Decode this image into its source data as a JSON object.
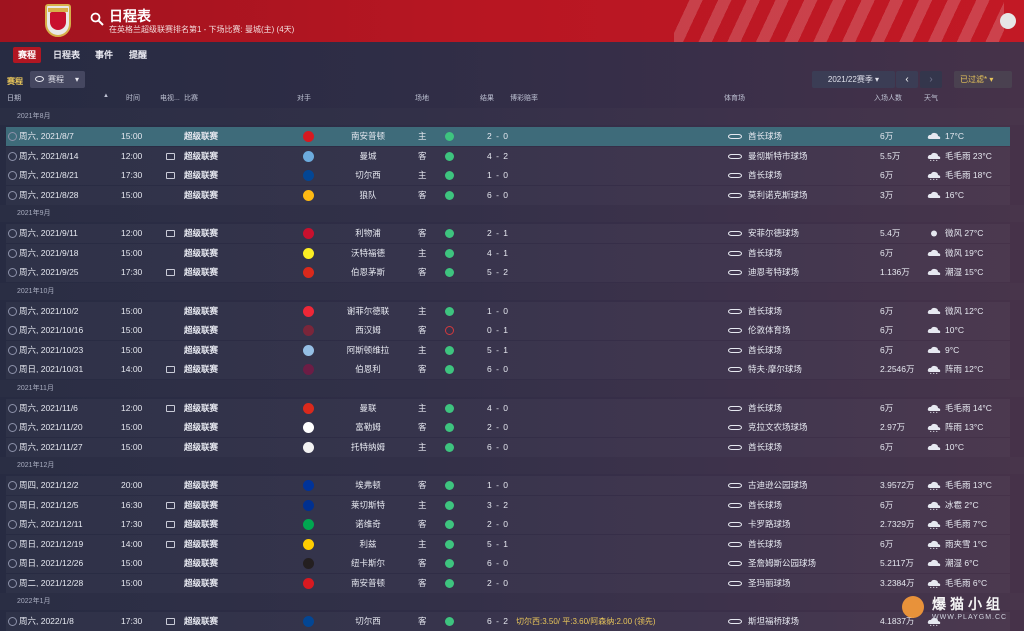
{
  "header": {
    "title": "日程表",
    "subtitle": "在英格兰超级联赛排名第1 - 下场比赛: 曼城(主) (4天)",
    "club_color": "#c8102e"
  },
  "tabs": [
    "赛程",
    "日程表",
    "事件",
    "提醒"
  ],
  "toolbar": {
    "label": "赛程",
    "view_select": "赛程",
    "season": "2021/22赛季",
    "filter": "已过滤*"
  },
  "columns": {
    "date": "日期",
    "time": "时间",
    "tv": "电视...",
    "competition": "比赛",
    "opponent": "对手",
    "venue": "场地",
    "result": "结果",
    "odds": "博彩赔率",
    "stadium": "体育场",
    "attendance": "入场人数",
    "weather": "天气"
  },
  "groups": [
    {
      "label": "2021年8月",
      "rows": [
        {
          "date": "周六, 2021/8/7",
          "time": "15:00",
          "tv": false,
          "comp": "超级联赛",
          "opp": "南安普顿",
          "venue": "主",
          "result": "2 - 0",
          "outcome": "win",
          "stadium": "酋长球场",
          "att": "6万",
          "weather": "17°C",
          "wicon": "cloud",
          "badge": "#d71920"
        },
        {
          "date": "周六, 2021/8/14",
          "time": "12:00",
          "tv": true,
          "comp": "超级联赛",
          "opp": "曼城",
          "venue": "客",
          "result": "4 - 2",
          "outcome": "win",
          "stadium": "曼彻斯特市球场",
          "att": "5.5万",
          "weather": "毛毛雨 23°C",
          "wicon": "rain",
          "badge": "#6cabdd"
        },
        {
          "date": "周六, 2021/8/21",
          "time": "17:30",
          "tv": true,
          "comp": "超级联赛",
          "opp": "切尔西",
          "venue": "主",
          "result": "1 - 0",
          "outcome": "win",
          "stadium": "酋长球场",
          "att": "6万",
          "weather": "毛毛雨 18°C",
          "wicon": "rain",
          "badge": "#034694"
        },
        {
          "date": "周六, 2021/8/28",
          "time": "15:00",
          "tv": false,
          "comp": "超级联赛",
          "opp": "狼队",
          "venue": "客",
          "result": "6 - 0",
          "outcome": "win",
          "stadium": "莫利诺克斯球场",
          "att": "3万",
          "weather": "16°C",
          "wicon": "cloud",
          "badge": "#fdb913"
        }
      ]
    },
    {
      "label": "2021年9月",
      "rows": [
        {
          "date": "周六, 2021/9/11",
          "time": "12:00",
          "tv": true,
          "comp": "超级联赛",
          "opp": "利物浦",
          "venue": "客",
          "result": "2 - 1",
          "outcome": "win",
          "stadium": "安菲尔德球场",
          "att": "5.4万",
          "weather": "微风 27°C",
          "wicon": "sun",
          "badge": "#c8102e"
        },
        {
          "date": "周六, 2021/9/18",
          "time": "15:00",
          "tv": false,
          "comp": "超级联赛",
          "opp": "沃特福德",
          "venue": "主",
          "result": "4 - 1",
          "outcome": "win",
          "stadium": "酋长球场",
          "att": "6万",
          "weather": "微风 19°C",
          "wicon": "cloud",
          "badge": "#fbee23"
        },
        {
          "date": "周六, 2021/9/25",
          "time": "17:30",
          "tv": true,
          "comp": "超级联赛",
          "opp": "伯恩茅斯",
          "venue": "客",
          "result": "5 - 2",
          "outcome": "win",
          "stadium": "迪恩考特球场",
          "att": "1.136万",
          "weather": "潮湿 15°C",
          "wicon": "cloud",
          "badge": "#da291c"
        }
      ]
    },
    {
      "label": "2021年10月",
      "rows": [
        {
          "date": "周六, 2021/10/2",
          "time": "15:00",
          "tv": false,
          "comp": "超级联赛",
          "opp": "谢菲尔德联",
          "venue": "主",
          "result": "1 - 0",
          "outcome": "win",
          "stadium": "酋长球场",
          "att": "6万",
          "weather": "微风 12°C",
          "wicon": "cloud",
          "badge": "#ee2737"
        },
        {
          "date": "周六, 2021/10/16",
          "time": "15:00",
          "tv": false,
          "comp": "超级联赛",
          "opp": "西汉姆",
          "venue": "客",
          "result": "0 - 1",
          "outcome": "loss",
          "stadium": "伦敦体育场",
          "att": "6万",
          "weather": "10°C",
          "wicon": "cloud",
          "badge": "#7a263a"
        },
        {
          "date": "周六, 2021/10/23",
          "time": "15:00",
          "tv": false,
          "comp": "超级联赛",
          "opp": "阿斯顿维拉",
          "venue": "主",
          "result": "5 - 1",
          "outcome": "win",
          "stadium": "酋长球场",
          "att": "6万",
          "weather": "9°C",
          "wicon": "cloud",
          "badge": "#95bfe5"
        },
        {
          "date": "周日, 2021/10/31",
          "time": "14:00",
          "tv": true,
          "comp": "超级联赛",
          "opp": "伯恩利",
          "venue": "客",
          "result": "6 - 0",
          "outcome": "win",
          "stadium": "特夫·摩尔球场",
          "att": "2.2546万",
          "weather": "阵雨 12°C",
          "wicon": "rain",
          "badge": "#6c1d45"
        }
      ]
    },
    {
      "label": "2021年11月",
      "rows": [
        {
          "date": "周六, 2021/11/6",
          "time": "12:00",
          "tv": true,
          "comp": "超级联赛",
          "opp": "曼联",
          "venue": "主",
          "result": "4 - 0",
          "outcome": "win",
          "stadium": "酋长球场",
          "att": "6万",
          "weather": "毛毛雨 14°C",
          "wicon": "rain",
          "badge": "#da291c"
        },
        {
          "date": "周六, 2021/11/20",
          "time": "15:00",
          "tv": false,
          "comp": "超级联赛",
          "opp": "富勒姆",
          "venue": "客",
          "result": "2 - 0",
          "outcome": "win",
          "stadium": "克拉文农场球场",
          "att": "2.97万",
          "weather": "阵雨 13°C",
          "wicon": "rain",
          "badge": "#ffffff"
        },
        {
          "date": "周六, 2021/11/27",
          "time": "15:00",
          "tv": false,
          "comp": "超级联赛",
          "opp": "托特纳姆",
          "venue": "主",
          "result": "6 - 0",
          "outcome": "win",
          "stadium": "酋长球场",
          "att": "6万",
          "weather": "10°C",
          "wicon": "cloud",
          "badge": "#f2f2f2"
        }
      ]
    },
    {
      "label": "2021年12月",
      "rows": [
        {
          "date": "周四, 2021/12/2",
          "time": "20:00",
          "tv": false,
          "comp": "超级联赛",
          "opp": "埃弗顿",
          "venue": "客",
          "result": "1 - 0",
          "outcome": "win",
          "stadium": "古迪逊公园球场",
          "att": "3.9572万",
          "weather": "毛毛雨 13°C",
          "wicon": "rain",
          "badge": "#003399"
        },
        {
          "date": "周日, 2021/12/5",
          "time": "16:30",
          "tv": true,
          "comp": "超级联赛",
          "opp": "莱切斯特",
          "venue": "主",
          "result": "3 - 2",
          "outcome": "win",
          "stadium": "酋长球场",
          "att": "6万",
          "weather": "冰雹 2°C",
          "wicon": "rain",
          "badge": "#003090"
        },
        {
          "date": "周六, 2021/12/11",
          "time": "17:30",
          "tv": true,
          "comp": "超级联赛",
          "opp": "诺维奇",
          "venue": "客",
          "result": "2 - 0",
          "outcome": "win",
          "stadium": "卡罗路球场",
          "att": "2.7329万",
          "weather": "毛毛雨 7°C",
          "wicon": "rain",
          "badge": "#00a650"
        },
        {
          "date": "周日, 2021/12/19",
          "time": "14:00",
          "tv": true,
          "comp": "超级联赛",
          "opp": "利兹",
          "venue": "主",
          "result": "5 - 1",
          "outcome": "win",
          "stadium": "酋长球场",
          "att": "6万",
          "weather": "雨夹雪 1°C",
          "wicon": "rain",
          "badge": "#ffcd00"
        },
        {
          "date": "周日, 2021/12/26",
          "time": "15:00",
          "tv": false,
          "comp": "超级联赛",
          "opp": "纽卡斯尔",
          "venue": "客",
          "result": "6 - 0",
          "outcome": "win",
          "stadium": "圣詹姆斯公园球场",
          "att": "5.2117万",
          "weather": "潮湿 6°C",
          "wicon": "cloud",
          "badge": "#241f20"
        },
        {
          "date": "周二, 2021/12/28",
          "time": "15:00",
          "tv": false,
          "comp": "超级联赛",
          "opp": "南安普顿",
          "venue": "客",
          "result": "2 - 0",
          "outcome": "win",
          "stadium": "圣玛丽球场",
          "att": "3.2384万",
          "weather": "毛毛雨 6°C",
          "wicon": "rain",
          "badge": "#d71920"
        }
      ]
    },
    {
      "label": "2022年1月",
      "rows": [
        {
          "date": "周六, 2022/1/8",
          "time": "17:30",
          "tv": true,
          "comp": "超级联赛",
          "opp": "切尔西",
          "venue": "客",
          "result": "6 - 2",
          "outcome": "win",
          "stadium": "斯坦福桥球场",
          "att": "4.1837万",
          "weather": "",
          "wicon": "rain",
          "badge": "#034694",
          "odds": "切尔西:3.50/ 平:3.60/阿森纳:2.00 (领先)"
        }
      ]
    }
  ],
  "watermark": {
    "text": "爆猫小组",
    "url": "WWW.PLAYGM.CC"
  }
}
